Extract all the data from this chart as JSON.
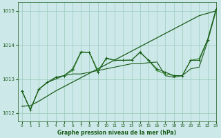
{
  "xlabel": "Graphe pression niveau de la mer (hPa)",
  "ylim": [
    1011.75,
    1015.25
  ],
  "xlim": [
    -0.5,
    23
  ],
  "yticks": [
    1012,
    1013,
    1014,
    1015
  ],
  "xticks": [
    0,
    1,
    2,
    3,
    4,
    5,
    6,
    7,
    8,
    9,
    10,
    11,
    12,
    13,
    14,
    15,
    16,
    17,
    18,
    19,
    20,
    21,
    22,
    23
  ],
  "bg_color": "#cce8e8",
  "grid_color": "#99ccbb",
  "dark": "#1a5c1a",
  "light": "#3a8c3a",
  "straight_line": [
    1012.2,
    1012.22,
    1012.35,
    1012.5,
    1012.65,
    1012.78,
    1012.91,
    1013.04,
    1013.17,
    1013.3,
    1013.43,
    1013.56,
    1013.69,
    1013.82,
    1013.95,
    1014.08,
    1014.21,
    1014.34,
    1014.47,
    1014.6,
    1014.73,
    1014.86,
    1014.93,
    1015.0
  ],
  "wiggly1": [
    1012.65,
    1012.1,
    1012.7,
    1012.9,
    1013.05,
    1013.1,
    1013.25,
    1013.78,
    1013.78,
    1013.25,
    1013.6,
    1013.55,
    1013.55,
    1013.55,
    1013.8,
    1013.55,
    1013.25,
    1013.15,
    1013.1,
    1013.1,
    1013.55,
    1013.6,
    1014.15,
    1015.0
  ],
  "wiggly2": [
    1012.65,
    1012.1,
    1012.7,
    1012.9,
    1013.05,
    1013.1,
    1013.3,
    1013.8,
    1013.78,
    1013.2,
    1013.62,
    1013.55,
    1013.55,
    1013.56,
    1013.78,
    1013.55,
    1013.3,
    1013.2,
    1013.1,
    1013.1,
    1013.55,
    1013.55,
    1014.15,
    1015.05
  ],
  "smooth": [
    1012.65,
    1012.1,
    1012.7,
    1012.9,
    1013.0,
    1013.1,
    1013.15,
    1013.15,
    1013.2,
    1013.25,
    1013.3,
    1013.35,
    1013.4,
    1013.45,
    1013.45,
    1013.48,
    1013.5,
    1013.1,
    1013.05,
    1013.1,
    1013.3,
    1013.35,
    1014.1,
    1015.0
  ]
}
